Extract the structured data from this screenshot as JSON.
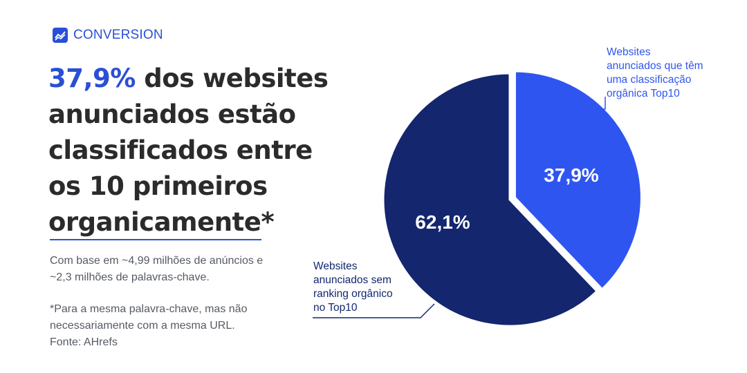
{
  "brand": {
    "name": "CONVERSION"
  },
  "headline": {
    "highlight": "37,9%",
    "rest": " dos websites anunciados estão classificados entre os 10 primeiros organicamente*"
  },
  "notes": {
    "basis": "Com base em ~4,99 milhões de anúncios e ~2,3 milhões de palavras-chave.",
    "footnote": "*Para a mesma palavra-chave, mas não necessariamente com a mesma URL.",
    "source": "Fonte: AHrefs"
  },
  "colors": {
    "accent": "#2a4fd6",
    "dark_navy": "#13266e",
    "bright_blue": "#2f55f0"
  },
  "chart_data": {
    "type": "pie",
    "slices": [
      {
        "label": "Websites anunciados que têm uma classificação orgânica Top10",
        "value": 37.9,
        "display": "37,9%",
        "color": "#2f55f0"
      },
      {
        "label": "Websites anunciados sem ranking orgânico no Top10",
        "value": 62.1,
        "display": "62,1%",
        "color": "#13266e"
      }
    ]
  }
}
